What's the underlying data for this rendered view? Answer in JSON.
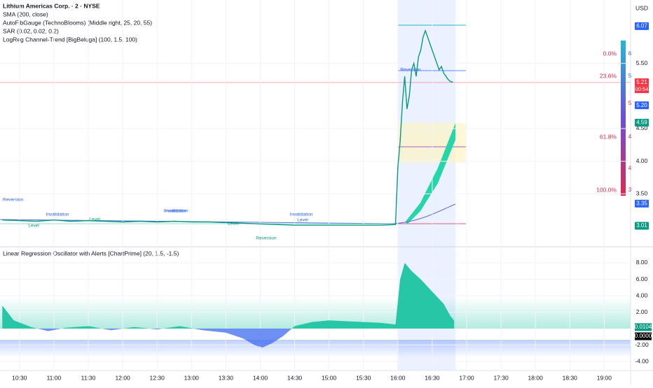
{
  "chart_data": [
    {
      "type": "line",
      "title": "Lithium Americas Corp. · 2 · NYSE",
      "indicators": [
        "SMA (200, close)",
        "AutoFibGauge (TechnoBlooms) (Middle right, 25, 20, 55)",
        "SAR (0.02, 0.02, 0.2)",
        "LogReg Channel-Trend [BigBeluga] (100, 1.5, 100)"
      ],
      "currency": "USD",
      "x": [
        615,
        630,
        645,
        660,
        675,
        690,
        705,
        720,
        735,
        750,
        765,
        780,
        795,
        810,
        825,
        840,
        855,
        870,
        885,
        900,
        915,
        930,
        945,
        958,
        960,
        962,
        964,
        966,
        968,
        970,
        972,
        974,
        976,
        978,
        980,
        982,
        984,
        986,
        988,
        990,
        992,
        994,
        996,
        998,
        1000,
        1002,
        1004,
        1006,
        1008
      ],
      "series": [
        {
          "name": "Price",
          "color": "#089981",
          "values": [
            3.1,
            3.09,
            3.08,
            3.1,
            3.08,
            3.09,
            3.08,
            3.07,
            3.08,
            3.07,
            3.08,
            3.07,
            3.07,
            3.06,
            3.05,
            3.04,
            3.03,
            3.02,
            3.02,
            3.02,
            3.02,
            3.02,
            3.02,
            3.03,
            3.9,
            4.3,
            4.9,
            5.3,
            4.8,
            5.0,
            5.4,
            5.5,
            5.3,
            5.6,
            5.7,
            5.9,
            6.0,
            5.9,
            5.8,
            5.7,
            5.6,
            5.5,
            5.4,
            5.45,
            5.35,
            5.3,
            5.25,
            5.22,
            5.21
          ]
        }
      ],
      "xlim": [
        613,
        1163
      ],
      "ylim": [
        2.7,
        6.47
      ],
      "yticks": [
        {
          "value": 5.5,
          "label": "5.50"
        },
        {
          "value": 4.5,
          "label": "4.50"
        },
        {
          "value": 4.0,
          "label": "4.00"
        },
        {
          "value": 3.5,
          "label": "3.50"
        }
      ],
      "price_tags": [
        {
          "value": 6.07,
          "label": "6.07"
        },
        {
          "value": 5.21,
          "label": "5.21"
        },
        {
          "value": 5.2,
          "label": "5.20"
        },
        {
          "value": 4.59,
          "label": "4.59"
        },
        {
          "value": 3.35,
          "label": "3.35"
        },
        {
          "value": 3.01,
          "label": "3.01"
        }
      ],
      "countdown": "00:54",
      "fib_labels": [
        "0.0%",
        "23.6%",
        "61.8%",
        "100.0%"
      ],
      "gauge_labels": [
        "6",
        "5",
        "5",
        "4",
        "4",
        "3"
      ],
      "annotations": [
        "Reversion",
        "Invalidation",
        "Level",
        "Invalidation",
        "Level",
        "Invalidation",
        "Level",
        "Invalidation",
        "Level",
        "Reversion",
        "Reversion"
      ]
    },
    {
      "type": "area",
      "title": "Linear Regression Oscillator with Alerts [ChartPrime] (20, 1.5, -1.5)",
      "x": [
        615,
        625,
        640,
        655,
        670,
        690,
        710,
        730,
        750,
        770,
        790,
        810,
        825,
        835,
        842,
        850,
        860,
        870,
        885,
        900,
        915,
        930,
        945,
        958,
        962,
        966,
        972,
        980,
        990,
        1000,
        1006,
        1009
      ],
      "series": [
        {
          "name": "Oscillator",
          "color": "#26c6a6",
          "values": [
            2.8,
            1.0,
            0.2,
            -0.3,
            0.1,
            0.3,
            -0.2,
            0.2,
            -0.1,
            0.3,
            -0.2,
            -0.5,
            -1.2,
            -2.0,
            -2.3,
            -1.8,
            -0.9,
            0.3,
            0.8,
            1.0,
            0.9,
            0.8,
            0.7,
            0.5,
            6.0,
            8.0,
            7.0,
            6.0,
            4.5,
            3.0,
            1.5,
            1.0
          ]
        }
      ],
      "xlim": [
        613,
        1163
      ],
      "ylim": [
        -5.1,
        9.7
      ],
      "yticks": [
        {
          "value": 8,
          "label": "8.00"
        },
        {
          "value": 6,
          "label": "6.00"
        },
        {
          "value": 4,
          "label": "4.00"
        },
        {
          "value": 2,
          "label": "2.00"
        },
        {
          "value": -2,
          "label": "-2.00"
        },
        {
          "value": -4,
          "label": "-4.00"
        }
      ],
      "value_tags": [
        {
          "value": 0.0104,
          "label": "0.0104"
        },
        {
          "value": 0,
          "label": "0.0000"
        }
      ],
      "xticks": [
        {
          "value": 630,
          "label": "10:30"
        },
        {
          "value": 660,
          "label": "11:00"
        },
        {
          "value": 690,
          "label": "11:30"
        },
        {
          "value": 720,
          "label": "12:00"
        },
        {
          "value": 750,
          "label": "12:30"
        },
        {
          "value": 780,
          "label": "13:00"
        },
        {
          "value": 810,
          "label": "13:30"
        },
        {
          "value": 840,
          "label": "14:00"
        },
        {
          "value": 870,
          "label": "14:30"
        },
        {
          "value": 900,
          "label": "15:00"
        },
        {
          "value": 930,
          "label": "15:30"
        },
        {
          "value": 960,
          "label": "16:00"
        },
        {
          "value": 990,
          "label": "16:30"
        },
        {
          "value": 1020,
          "label": "17:00"
        },
        {
          "value": 1050,
          "label": "17:30"
        },
        {
          "value": 1080,
          "label": "18:00"
        },
        {
          "value": 1110,
          "label": "18:30"
        },
        {
          "value": 1140,
          "label": "19:00"
        }
      ]
    }
  ]
}
